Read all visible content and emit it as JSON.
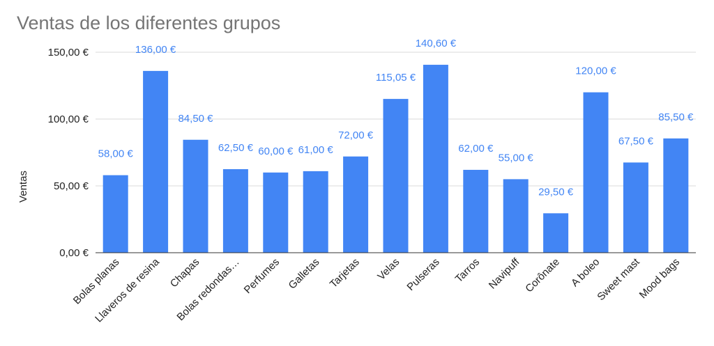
{
  "chart_data": {
    "type": "bar",
    "title": "Ventas de los diferentes grupos",
    "ylabel": "Ventas",
    "xlabel": "",
    "ylim": [
      0,
      150
    ],
    "yticks": [
      0,
      50,
      100,
      150
    ],
    "ytick_labels": [
      "0,00 €",
      "50,00 €",
      "100,00 €",
      "150,00 €"
    ],
    "grid": true,
    "categories": [
      "Bolas planas",
      "Llaveros de resina",
      "Chapas",
      "Bolas redondas…",
      "Perfumes",
      "Galletas",
      "Tarjetas",
      "Velas",
      "Pulseras",
      "Tarros",
      "Navipuff",
      "Corônate",
      "A boleo",
      "Sweet mast",
      "Mood bags"
    ],
    "values": [
      58.0,
      136.0,
      84.5,
      62.5,
      60.0,
      61.0,
      72.0,
      115.05,
      140.6,
      62.0,
      55.0,
      29.5,
      120.0,
      67.5,
      85.5
    ],
    "value_labels": [
      "58,00 €",
      "136,00 €",
      "84,50 €",
      "62,50 €",
      "60,00 €",
      "61,00 €",
      "72,00 €",
      "115,05 €",
      "140,60 €",
      "62,00 €",
      "55,00 €",
      "29,50 €",
      "120,00 €",
      "67,50 €",
      "85,50 €"
    ],
    "colors": {
      "bar": "#4285f4",
      "label": "#4285f4",
      "grid": "#d9d9d9",
      "axis": "#333333"
    }
  }
}
